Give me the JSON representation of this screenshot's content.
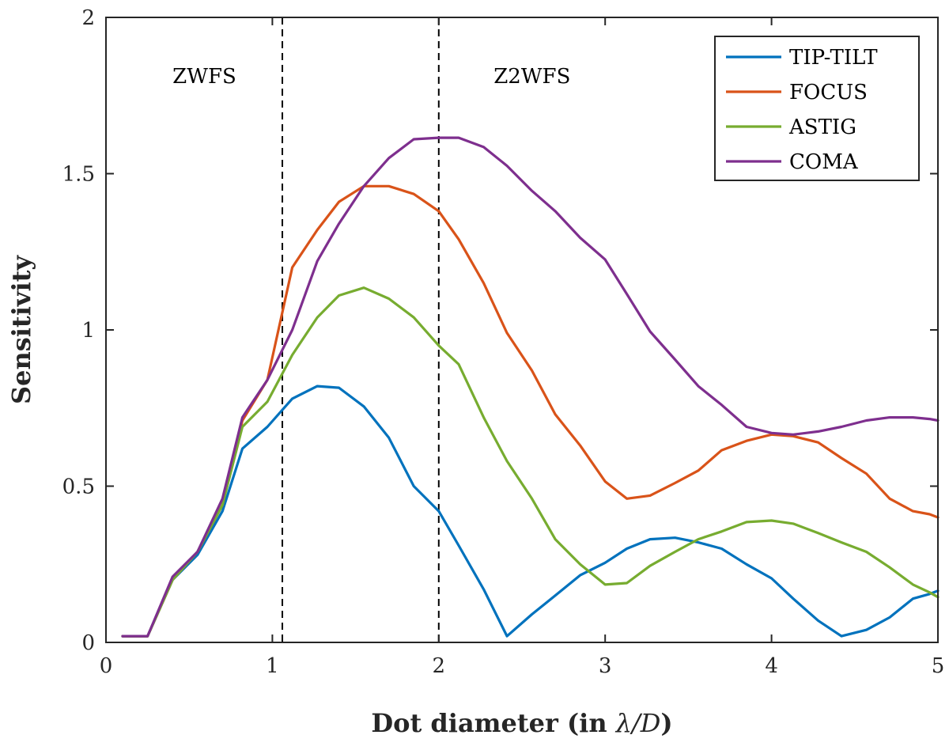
{
  "chart_data": {
    "type": "line",
    "xlabel_main": "Dot diameter (in ",
    "xlabel_math": "λ/D",
    "xlabel_close": ")",
    "ylabel": "Sensitivity",
    "xlim": [
      0,
      5
    ],
    "ylim": [
      0,
      2
    ],
    "xticks": [
      0,
      1,
      2,
      3,
      4,
      5
    ],
    "xtick_labels": [
      "0",
      "1",
      "2",
      "3",
      "4",
      "5"
    ],
    "yticks": [
      0,
      0.5,
      1,
      1.5,
      2
    ],
    "ytick_labels": [
      "0",
      "0.5",
      "1",
      "1.5",
      "2"
    ],
    "grid": false,
    "legend_position": "top-right",
    "vlines": [
      {
        "x": 1.06,
        "style": "dashed"
      },
      {
        "x": 2.0,
        "style": "dashed"
      }
    ],
    "annotations": [
      {
        "text": "ZWFS",
        "x": 0.4,
        "y": 1.79
      },
      {
        "text": "Z2WFS",
        "x": 2.33,
        "y": 1.79
      }
    ],
    "x": [
      0.1,
      0.25,
      0.4,
      0.55,
      0.7,
      0.82,
      0.97,
      1.12,
      1.27,
      1.4,
      1.55,
      1.7,
      1.85,
      2.0,
      2.12,
      2.27,
      2.41,
      2.56,
      2.7,
      2.85,
      3.0,
      3.13,
      3.27,
      3.42,
      3.56,
      3.7,
      3.85,
      4.0,
      4.13,
      4.28,
      4.42,
      4.57,
      4.71,
      4.85,
      4.95,
      5.0
    ],
    "series": [
      {
        "name": "TIP-TILT",
        "color": "#0072BD",
        "values": [
          0.02,
          0.02,
          0.2,
          0.28,
          0.42,
          0.62,
          0.69,
          0.78,
          0.82,
          0.815,
          0.755,
          0.655,
          0.5,
          0.42,
          0.31,
          0.17,
          0.02,
          0.09,
          0.15,
          0.215,
          0.255,
          0.3,
          0.33,
          0.335,
          0.32,
          0.3,
          0.25,
          0.205,
          0.14,
          0.07,
          0.02,
          0.04,
          0.08,
          0.14,
          0.155,
          0.165
        ]
      },
      {
        "name": "FOCUS",
        "color": "#D95319",
        "values": [
          0.02,
          0.02,
          0.2,
          0.29,
          0.44,
          0.71,
          0.84,
          1.2,
          1.32,
          1.41,
          1.46,
          1.46,
          1.435,
          1.38,
          1.29,
          1.15,
          0.99,
          0.87,
          0.73,
          0.63,
          0.515,
          0.46,
          0.47,
          0.51,
          0.55,
          0.615,
          0.645,
          0.665,
          0.66,
          0.64,
          0.59,
          0.54,
          0.46,
          0.42,
          0.41,
          0.4
        ]
      },
      {
        "name": "ASTIG",
        "color": "#77AC30",
        "values": [
          0.02,
          0.02,
          0.2,
          0.29,
          0.44,
          0.69,
          0.77,
          0.92,
          1.04,
          1.11,
          1.135,
          1.1,
          1.04,
          0.95,
          0.89,
          0.72,
          0.58,
          0.46,
          0.33,
          0.25,
          0.185,
          0.19,
          0.245,
          0.29,
          0.33,
          0.355,
          0.385,
          0.39,
          0.38,
          0.35,
          0.32,
          0.29,
          0.24,
          0.185,
          0.16,
          0.145
        ]
      },
      {
        "name": "COMA",
        "color": "#7E2F8E",
        "values": [
          0.02,
          0.02,
          0.21,
          0.29,
          0.46,
          0.72,
          0.84,
          1.0,
          1.22,
          1.34,
          1.46,
          1.55,
          1.61,
          1.615,
          1.615,
          1.585,
          1.525,
          1.445,
          1.38,
          1.295,
          1.225,
          1.115,
          0.995,
          0.905,
          0.82,
          0.76,
          0.69,
          0.67,
          0.665,
          0.675,
          0.69,
          0.71,
          0.72,
          0.72,
          0.715,
          0.71
        ]
      }
    ]
  }
}
